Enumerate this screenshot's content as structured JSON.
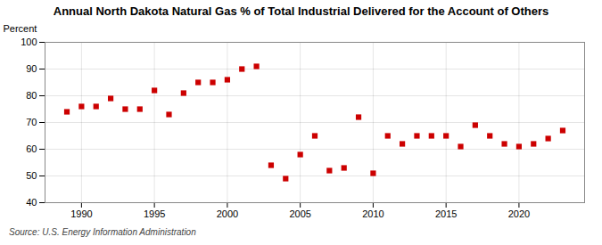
{
  "chart_data": {
    "type": "scatter",
    "title": "Annual North Dakota Natural Gas % of Total Industrial Delivered for the Account of Others",
    "ylabel": "Percent",
    "caption": "Source: U.S. Energy Information Administration",
    "x": [
      1989,
      1990,
      1991,
      1992,
      1993,
      1994,
      1995,
      1996,
      1997,
      1998,
      1999,
      2000,
      2001,
      2002,
      2003,
      2004,
      2005,
      2006,
      2007,
      2008,
      2009,
      2010,
      2011,
      2012,
      2013,
      2014,
      2015,
      2016,
      2017,
      2018,
      2019,
      2020,
      2021,
      2022,
      2023
    ],
    "values": [
      74,
      76,
      76,
      79,
      75,
      75,
      82,
      73,
      81,
      85,
      85,
      86,
      90,
      91,
      54,
      49,
      58,
      65,
      52,
      53,
      72,
      51,
      65,
      62,
      65,
      65,
      65,
      61,
      69,
      65,
      62,
      61,
      62,
      64,
      67
    ],
    "xlim": [
      1987.5,
      2024.5
    ],
    "xticks": [
      1990,
      1995,
      2000,
      2005,
      2010,
      2015,
      2020
    ],
    "ylim": [
      40,
      100
    ],
    "yticks": [
      40,
      50,
      60,
      70,
      80,
      90,
      100
    ],
    "color": "#cc0000",
    "marker": "square",
    "grid": true
  }
}
